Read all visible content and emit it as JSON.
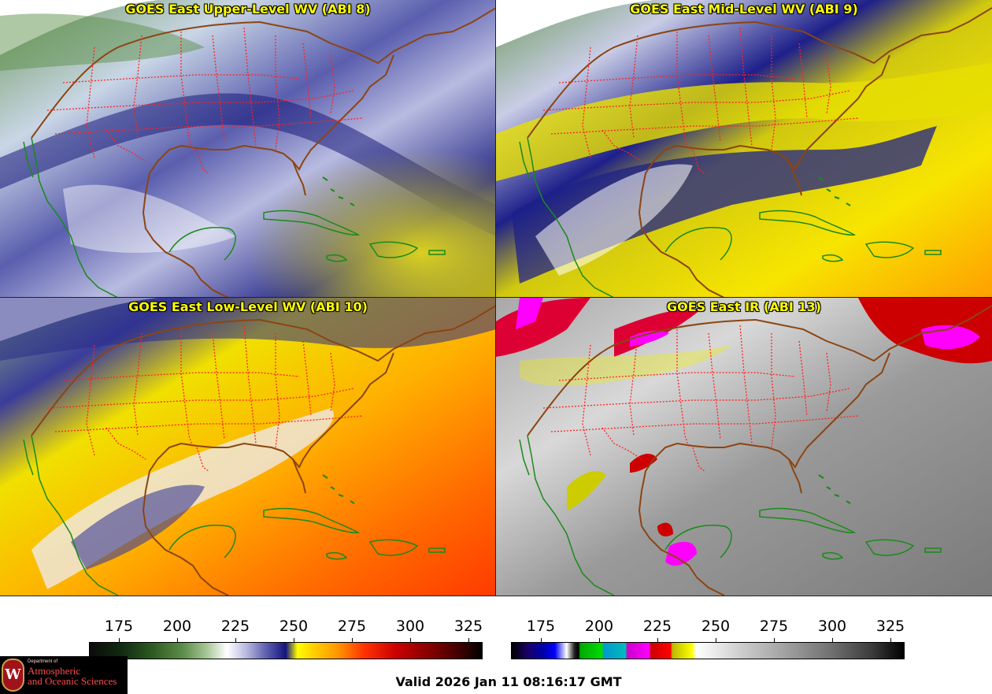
{
  "panels": [
    {
      "title": "GOES East Upper-Level WV (ABI 8)",
      "palette": "wv-upper"
    },
    {
      "title": "GOES East Mid-Level WV (ABI 9)",
      "palette": "wv-mid"
    },
    {
      "title": "GOES East Low-Level WV (ABI 10)",
      "palette": "wv-low"
    },
    {
      "title": "GOES East IR (ABI 13)",
      "palette": "ir"
    }
  ],
  "colorbars": {
    "wv": {
      "ticks": [
        "175",
        "200",
        "225",
        "250",
        "275",
        "300",
        "325"
      ]
    },
    "ir": {
      "ticks": [
        "175",
        "200",
        "225",
        "250",
        "275",
        "300",
        "325"
      ]
    }
  },
  "logo": {
    "department": "Department of",
    "line1": "Atmospheric",
    "line2": "and Oceanic Sciences",
    "seal_letter": "W"
  },
  "valid_time": "Valid 2026 Jan 11 08:16:17 GMT",
  "colors": {
    "title_text": "#ffff00",
    "state_borders": "#ff2222",
    "coastlines": "#1a8a1a",
    "country_borders": "#8b4513"
  }
}
